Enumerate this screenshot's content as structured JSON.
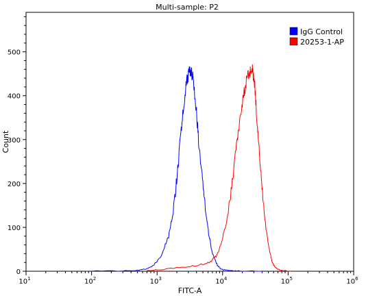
{
  "chart_data": {
    "type": "line",
    "title": "Multi-sample: P2",
    "xlabel": "FITC-A",
    "ylabel": "Count",
    "x_scale": "log",
    "xlim": [
      10,
      1000000
    ],
    "ylim": [
      0,
      590
    ],
    "y_ticks": [
      0,
      100,
      200,
      300,
      400,
      500
    ],
    "x_ticks": [
      {
        "base": "10",
        "exp": "1"
      },
      {
        "base": "10",
        "exp": "2"
      },
      {
        "base": "10",
        "exp": "3"
      },
      {
        "base": "10",
        "exp": "4"
      },
      {
        "base": "10",
        "exp": "5"
      },
      {
        "base": "10",
        "exp": "6"
      }
    ],
    "legend_position": "top-right",
    "grid": false,
    "series": [
      {
        "name": "IgG Control",
        "color": "#0000ff",
        "x": [
          100,
          300,
          500,
          700,
          900,
          1100,
          1300,
          1500,
          1700,
          1900,
          2100,
          2300,
          2500,
          2700,
          2900,
          3100,
          3300,
          3500,
          3800,
          4100,
          4400,
          4800,
          5200,
          5700,
          6200,
          6800,
          7500,
          8300,
          9200,
          10500,
          12000,
          15000,
          20000,
          40000
        ],
        "y": [
          0,
          1,
          2,
          6,
          15,
          30,
          55,
          80,
          120,
          180,
          240,
          310,
          370,
          410,
          440,
          455,
          460,
          440,
          400,
          340,
          280,
          220,
          170,
          120,
          80,
          48,
          28,
          14,
          6,
          3,
          2,
          1,
          0,
          0
        ]
      },
      {
        "name": "20253-1-AP",
        "color": "#ff0000",
        "x": [
          700,
          1000,
          2000,
          3500,
          5000,
          6500,
          8000,
          9500,
          11000,
          12500,
          14000,
          15500,
          17000,
          18500,
          20000,
          21500,
          23000,
          24500,
          26000,
          27500,
          29000,
          31000,
          33000,
          35000,
          38000,
          41000,
          45000,
          50000,
          55000,
          60000,
          66000,
          75000,
          90000,
          120000
        ],
        "y": [
          1,
          3,
          8,
          12,
          16,
          22,
          35,
          60,
          100,
          150,
          200,
          260,
          300,
          340,
          380,
          410,
          430,
          445,
          455,
          460,
          455,
          420,
          360,
          300,
          230,
          170,
          110,
          60,
          30,
          14,
          6,
          3,
          1,
          0
        ]
      }
    ]
  }
}
